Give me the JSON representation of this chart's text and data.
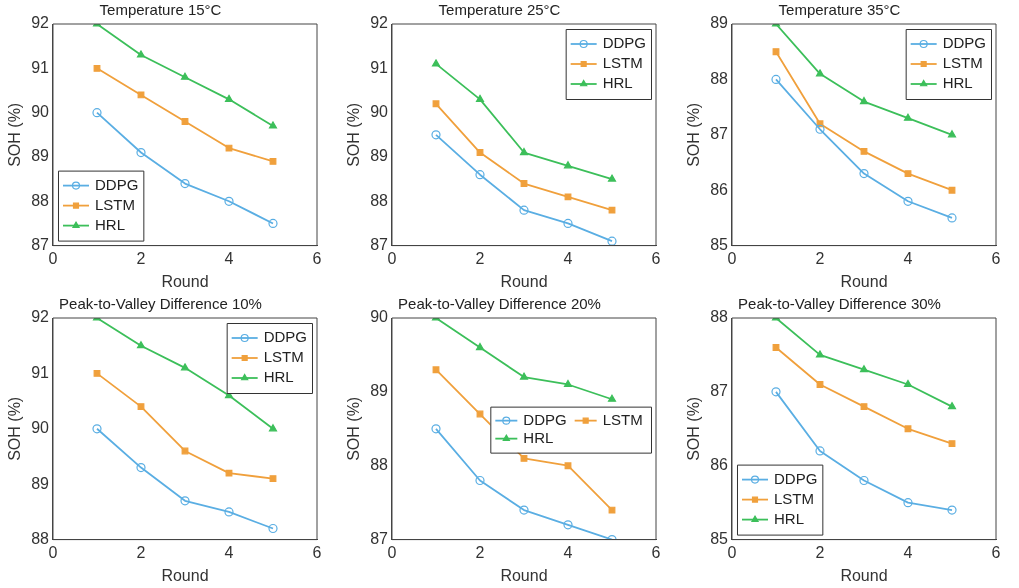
{
  "chart_data": [
    {
      "type": "line",
      "title": "Temperature 15°C",
      "xlabel": "Round",
      "ylabel": "SOH (%)",
      "x": [
        1,
        2,
        3,
        4,
        5
      ],
      "xlim": [
        0,
        6
      ],
      "xticks": [
        0,
        2,
        4,
        6
      ],
      "ylim": [
        87,
        92
      ],
      "yticks": [
        87,
        88,
        89,
        90,
        91,
        92
      ],
      "legend": "bottom left",
      "grid": false,
      "series": [
        {
          "name": "DDPG",
          "color": "#5aaee3",
          "marker": "circle",
          "values": [
            90.0,
            89.1,
            88.4,
            88.0,
            87.5
          ]
        },
        {
          "name": "LSTM",
          "color": "#f0a03c",
          "marker": "square",
          "values": [
            91.0,
            90.4,
            89.8,
            89.2,
            88.9
          ]
        },
        {
          "name": "HRL",
          "color": "#3cbf5a",
          "marker": "triangle",
          "values": [
            92.0,
            91.3,
            90.8,
            90.3,
            89.7
          ]
        }
      ]
    },
    {
      "type": "line",
      "title": "Temperature 25°C",
      "xlabel": "Round",
      "ylabel": "SOH (%)",
      "x": [
        1,
        2,
        3,
        4,
        5
      ],
      "xlim": [
        0,
        6
      ],
      "xticks": [
        0,
        2,
        4,
        6
      ],
      "ylim": [
        87,
        92
      ],
      "yticks": [
        87,
        88,
        89,
        90,
        91,
        92
      ],
      "legend": "top right",
      "grid": false,
      "series": [
        {
          "name": "DDPG",
          "color": "#5aaee3",
          "marker": "circle",
          "values": [
            89.5,
            88.6,
            87.8,
            87.5,
            87.1
          ]
        },
        {
          "name": "LSTM",
          "color": "#f0a03c",
          "marker": "square",
          "values": [
            90.2,
            89.1,
            88.4,
            88.1,
            87.8
          ]
        },
        {
          "name": "HRL",
          "color": "#3cbf5a",
          "marker": "triangle",
          "values": [
            91.1,
            90.3,
            89.1,
            88.8,
            88.5
          ]
        }
      ]
    },
    {
      "type": "line",
      "title": "Temperature 35°C",
      "xlabel": "Round",
      "ylabel": "SOH (%)",
      "x": [
        1,
        2,
        3,
        4,
        5
      ],
      "xlim": [
        0,
        6
      ],
      "xticks": [
        0,
        2,
        4,
        6
      ],
      "ylim": [
        85,
        89
      ],
      "yticks": [
        85,
        86,
        87,
        88,
        89
      ],
      "legend": "top right",
      "grid": false,
      "series": [
        {
          "name": "DDPG",
          "color": "#5aaee3",
          "marker": "circle",
          "values": [
            88.0,
            87.1,
            86.3,
            85.8,
            85.5
          ]
        },
        {
          "name": "LSTM",
          "color": "#f0a03c",
          "marker": "square",
          "values": [
            88.5,
            87.2,
            86.7,
            86.3,
            86.0
          ]
        },
        {
          "name": "HRL",
          "color": "#3cbf5a",
          "marker": "triangle",
          "values": [
            89.0,
            88.1,
            87.6,
            87.3,
            87.0
          ]
        }
      ]
    },
    {
      "type": "line",
      "title": "Peak-to-Valley Difference 10%",
      "xlabel": "Round",
      "ylabel": "SOH (%)",
      "x": [
        1,
        2,
        3,
        4,
        5
      ],
      "xlim": [
        0,
        6
      ],
      "xticks": [
        0,
        2,
        4,
        6
      ],
      "ylim": [
        88,
        92
      ],
      "yticks": [
        88,
        89,
        90,
        91,
        92
      ],
      "legend": "top right",
      "grid": false,
      "series": [
        {
          "name": "DDPG",
          "color": "#5aaee3",
          "marker": "circle",
          "values": [
            90.0,
            89.3,
            88.7,
            88.5,
            88.2
          ]
        },
        {
          "name": "LSTM",
          "color": "#f0a03c",
          "marker": "square",
          "values": [
            91.0,
            90.4,
            89.6,
            89.2,
            89.1
          ]
        },
        {
          "name": "HRL",
          "color": "#3cbf5a",
          "marker": "triangle",
          "values": [
            92.0,
            91.5,
            91.1,
            90.6,
            90.0
          ]
        }
      ]
    },
    {
      "type": "line",
      "title": "Peak-to-Valley Difference 20%",
      "xlabel": "Round",
      "ylabel": "SOH (%)",
      "x": [
        1,
        2,
        3,
        4,
        5
      ],
      "xlim": [
        0,
        6
      ],
      "xticks": [
        0,
        2,
        4,
        6
      ],
      "ylim": [
        87,
        90
      ],
      "yticks": [
        87,
        88,
        89,
        90
      ],
      "legend": "right",
      "grid": false,
      "series": [
        {
          "name": "DDPG",
          "color": "#5aaee3",
          "marker": "circle",
          "values": [
            88.5,
            87.8,
            87.4,
            87.2,
            87.0
          ]
        },
        {
          "name": "LSTM",
          "color": "#f0a03c",
          "marker": "square",
          "values": [
            89.3,
            88.7,
            88.1,
            88.0,
            87.4
          ]
        },
        {
          "name": "HRL",
          "color": "#3cbf5a",
          "marker": "triangle",
          "values": [
            90.0,
            89.6,
            89.2,
            89.1,
            88.9
          ]
        }
      ]
    },
    {
      "type": "line",
      "title": "Peak-to-Valley Difference 30%",
      "xlabel": "Round",
      "ylabel": "SOH (%)",
      "x": [
        1,
        2,
        3,
        4,
        5
      ],
      "xlim": [
        0,
        6
      ],
      "xticks": [
        0,
        2,
        4,
        6
      ],
      "ylim": [
        85,
        88
      ],
      "yticks": [
        85,
        86,
        87,
        88
      ],
      "legend": "bottom left",
      "grid": false,
      "series": [
        {
          "name": "DDPG",
          "color": "#5aaee3",
          "marker": "circle",
          "values": [
            87.0,
            86.2,
            85.8,
            85.5,
            85.4
          ]
        },
        {
          "name": "LSTM",
          "color": "#f0a03c",
          "marker": "square",
          "values": [
            87.6,
            87.1,
            86.8,
            86.5,
            86.3
          ]
        },
        {
          "name": "HRL",
          "color": "#3cbf5a",
          "marker": "triangle",
          "values": [
            88.0,
            87.5,
            87.3,
            87.1,
            86.8
          ]
        }
      ]
    }
  ]
}
